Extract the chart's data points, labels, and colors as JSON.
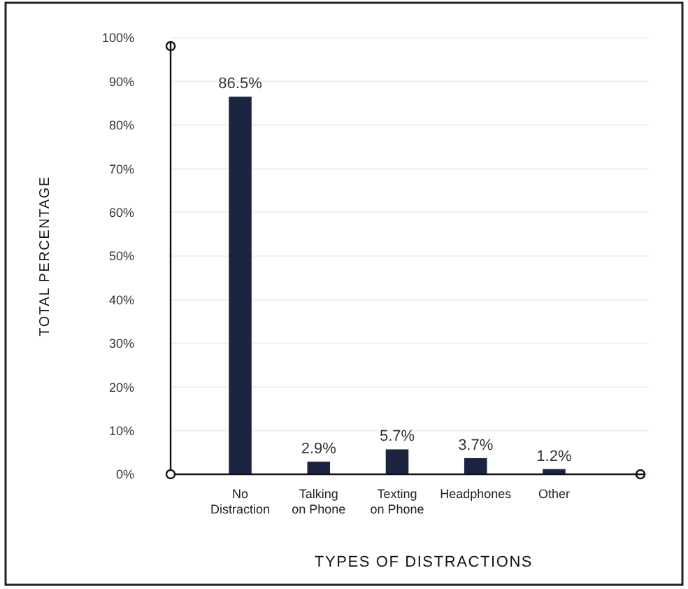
{
  "chart_data": {
    "type": "bar",
    "xlabel": "TYPES OF DISTRACTIONS",
    "ylabel": "TOTAL PERCENTAGE",
    "categories": [
      "No Distraction",
      "Talking on Phone",
      "Texting on Phone",
      "Headphones",
      "Other"
    ],
    "values": [
      86.5,
      2.9,
      5.7,
      3.7,
      1.2
    ],
    "color": "#1b2440",
    "value_labels": [
      "86.5%",
      "2.9%",
      "5.7%",
      "3.7%",
      "1.2%"
    ],
    "ylim": [
      0,
      100
    ],
    "yticks": [
      {
        "value": 0,
        "label": "0%"
      },
      {
        "value": 10,
        "label": "10%"
      },
      {
        "value": 20,
        "label": "20%"
      },
      {
        "value": 30,
        "label": "30%"
      },
      {
        "value": 40,
        "label": "40%"
      },
      {
        "value": 50,
        "label": "50%"
      },
      {
        "value": 60,
        "label": "60%"
      },
      {
        "value": 70,
        "label": "70%"
      },
      {
        "value": 80,
        "label": "80%"
      },
      {
        "value": 90,
        "label": "90%"
      },
      {
        "value": 100,
        "label": "100%"
      }
    ],
    "grid": "y"
  }
}
